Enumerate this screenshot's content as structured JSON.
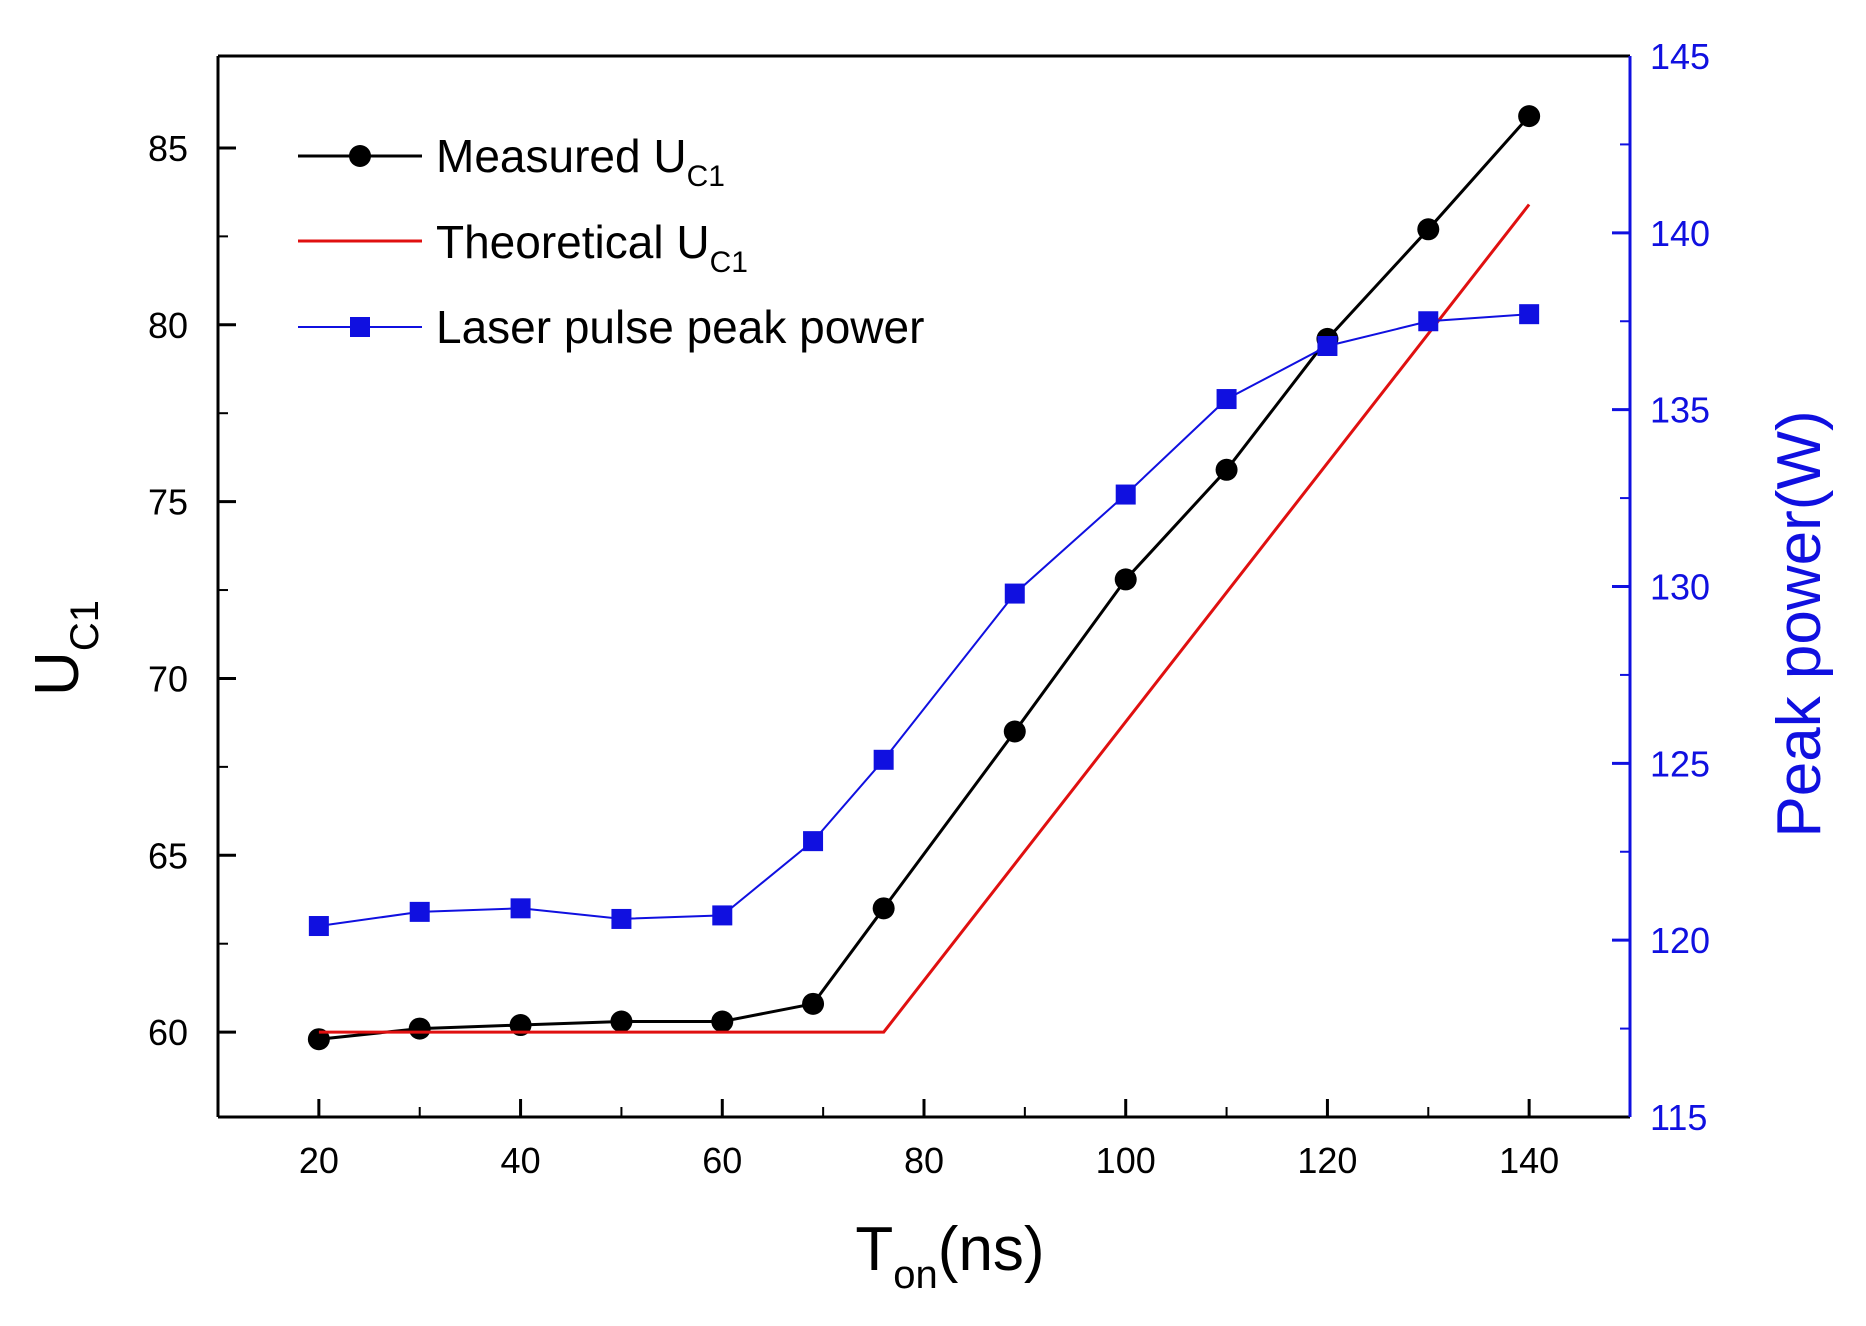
{
  "chart_data": {
    "type": "line",
    "x_axis": {
      "label_main": "T",
      "label_sub": "on",
      "label_unit": "(ns)",
      "range": [
        10,
        150
      ],
      "ticks": [
        20,
        40,
        60,
        80,
        100,
        120,
        140
      ],
      "minor_ticks": [
        30,
        50,
        70,
        90,
        110,
        130
      ]
    },
    "y_left": {
      "label_main": "U",
      "label_sub": "C1",
      "range": [
        57.6,
        87.6
      ],
      "ticks": [
        60,
        65,
        70,
        75,
        80,
        85
      ],
      "minor_ticks": [
        62.5,
        67.5,
        72.5,
        77.5,
        82.5
      ]
    },
    "y_right": {
      "label": "Peak power(W)",
      "range": [
        115,
        145
      ],
      "ticks": [
        115,
        120,
        125,
        130,
        135,
        140,
        145
      ],
      "minor_ticks": [
        117.5,
        122.5,
        127.5,
        132.5,
        137.5,
        142.5
      ],
      "color": "#1010e0"
    },
    "series": [
      {
        "name": "Measured U",
        "name_sub": "C1",
        "axis": "left",
        "color": "#000000",
        "marker": "circle",
        "x": [
          20,
          30,
          40,
          50,
          60,
          69,
          76,
          89,
          100,
          110,
          120,
          130,
          140
        ],
        "y": [
          59.8,
          60.1,
          60.2,
          60.3,
          60.3,
          60.8,
          63.5,
          68.5,
          72.8,
          75.9,
          79.6,
          82.7,
          85.9
        ]
      },
      {
        "name": "Theoretical U",
        "name_sub": "C1",
        "axis": "left",
        "color": "#e01010",
        "marker": "none",
        "x": [
          20,
          76,
          140
        ],
        "y": [
          60,
          60,
          83.4
        ]
      },
      {
        "name": "Laser pulse peak power",
        "name_sub": "",
        "axis": "right",
        "color": "#1010e0",
        "marker": "square",
        "x": [
          20,
          30,
          40,
          50,
          60,
          69,
          76,
          89,
          100,
          110,
          120,
          130,
          140
        ],
        "y": [
          120.4,
          120.8,
          120.9,
          120.6,
          120.7,
          122.8,
          125.1,
          129.8,
          132.6,
          135.3,
          136.8,
          137.5,
          137.7
        ]
      }
    ]
  }
}
